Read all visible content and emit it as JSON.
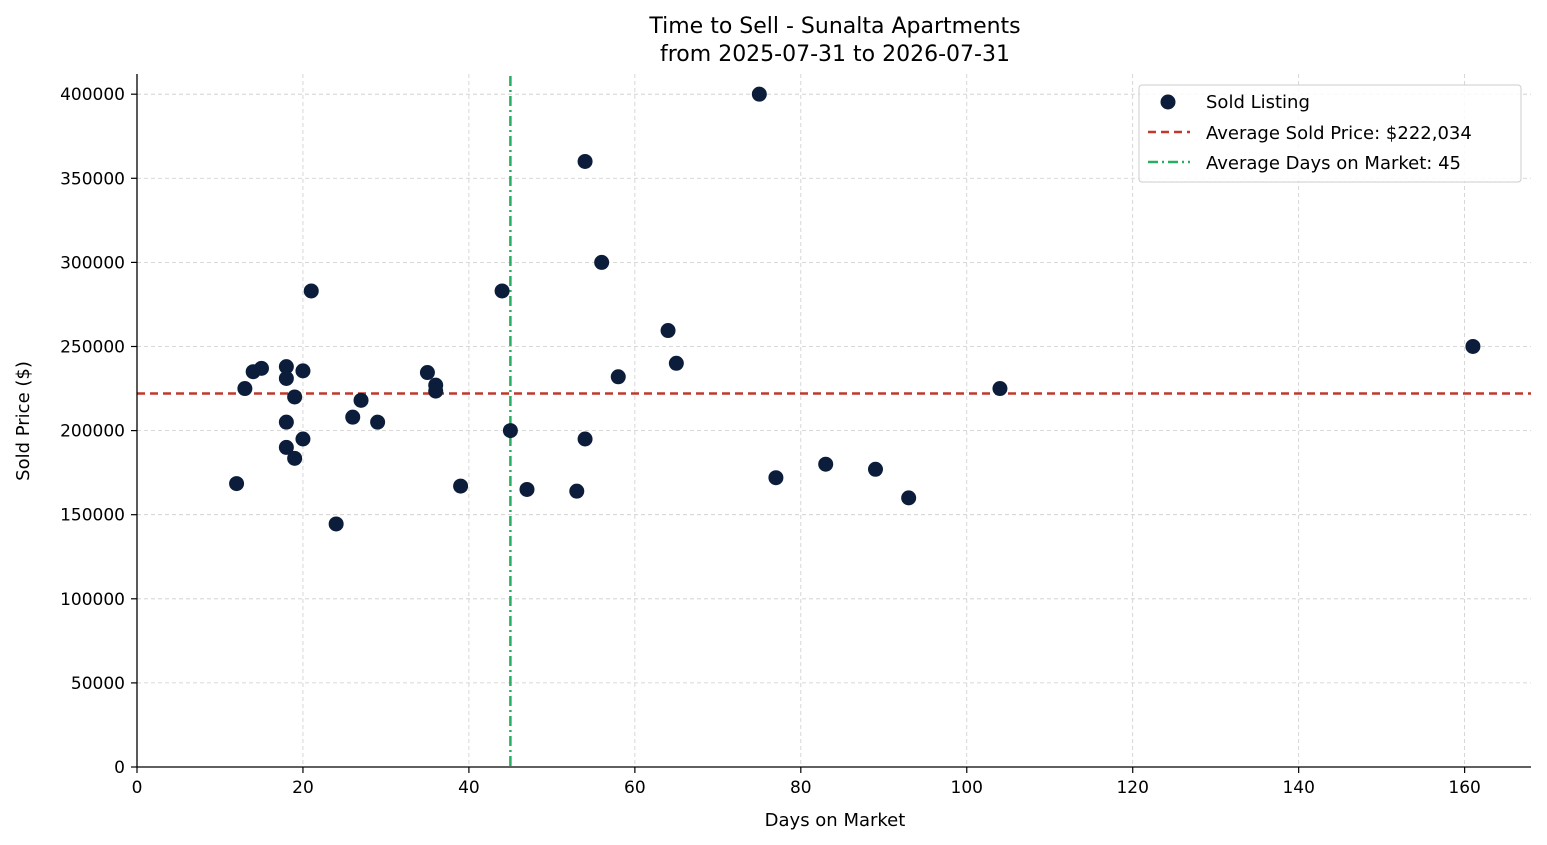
{
  "chart_data": {
    "type": "scatter",
    "title": "Time to Sell - Sunalta Apartments",
    "subtitle": "from 2025-07-31 to 2026-07-31",
    "xlabel": "Days on Market",
    "ylabel": "Sold Price ($)",
    "xlim": [
      0,
      168
    ],
    "ylim": [
      0,
      412000
    ],
    "xticks": [
      0,
      20,
      40,
      60,
      80,
      100,
      120,
      140,
      160
    ],
    "yticks": [
      0,
      50000,
      100000,
      150000,
      200000,
      250000,
      300000,
      350000,
      400000
    ],
    "grid": true,
    "legend_position": "top-right",
    "colors": {
      "points": "#0b1d3a",
      "avg_price_line": "#c0392b",
      "avg_days_line": "#27ae60"
    },
    "series": [
      {
        "name": "Sold Listing",
        "points": [
          [
            12,
            168500
          ],
          [
            13,
            225000
          ],
          [
            14,
            235000
          ],
          [
            15,
            237000
          ],
          [
            18,
            238000
          ],
          [
            18,
            231000
          ],
          [
            18,
            205000
          ],
          [
            18,
            190000
          ],
          [
            19,
            220000
          ],
          [
            19,
            183500
          ],
          [
            20,
            235500
          ],
          [
            20,
            195000
          ],
          [
            21,
            283000
          ],
          [
            24,
            144500
          ],
          [
            26,
            208000
          ],
          [
            27,
            218000
          ],
          [
            29,
            205000
          ],
          [
            35,
            234500
          ],
          [
            36,
            227000
          ],
          [
            36,
            223500
          ],
          [
            39,
            167000
          ],
          [
            44,
            283000
          ],
          [
            45,
            200000
          ],
          [
            47,
            165000
          ],
          [
            53,
            164000
          ],
          [
            54,
            360000
          ],
          [
            54,
            195000
          ],
          [
            56,
            300000
          ],
          [
            58,
            232000
          ],
          [
            64,
            259500
          ],
          [
            65,
            240000
          ],
          [
            75,
            400000
          ],
          [
            77,
            172000
          ],
          [
            83,
            180000
          ],
          [
            89,
            177000
          ],
          [
            93,
            160000
          ],
          [
            104,
            225000
          ],
          [
            161,
            250000
          ]
        ]
      }
    ],
    "reference_lines": [
      {
        "name": "Average Sold Price: $222,034",
        "axis": "y",
        "value": 222034,
        "style": "dashed"
      },
      {
        "name": "Average Days on Market: 45",
        "axis": "x",
        "value": 45,
        "style": "dashdot"
      }
    ]
  }
}
